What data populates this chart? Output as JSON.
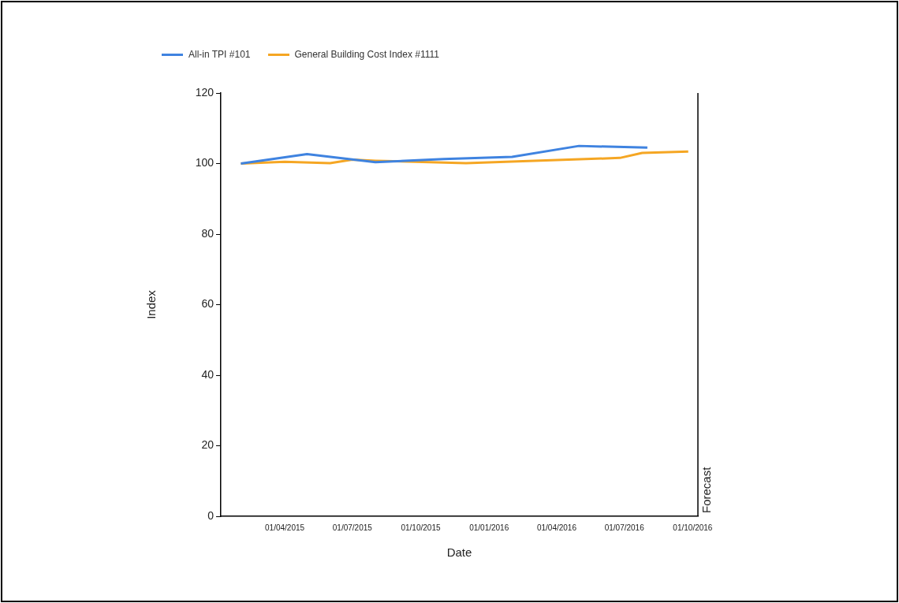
{
  "chart_data": {
    "type": "line",
    "xlabel": "Date",
    "ylabel": "Index",
    "xlim": [
      "2015-01-05",
      "2016-10-08"
    ],
    "xticks": [
      {
        "value": "2015-04-01",
        "label": "01/04/2015"
      },
      {
        "value": "2015-07-01",
        "label": "01/07/2015"
      },
      {
        "value": "2015-10-01",
        "label": "01/10/2015"
      },
      {
        "value": "2016-01-01",
        "label": "01/01/2016"
      },
      {
        "value": "2016-04-01",
        "label": "01/04/2016"
      },
      {
        "value": "2016-07-01",
        "label": "01/07/2016"
      },
      {
        "value": "2016-10-01",
        "label": "01/10/2016"
      }
    ],
    "ylim": [
      0,
      120
    ],
    "yticks": [
      0,
      20,
      40,
      60,
      80,
      100,
      120
    ],
    "grid": false,
    "legend": "top left",
    "marker": "none",
    "line_style": "solid",
    "series": [
      {
        "name": "All-in TPI #101",
        "color": "#3f83e0",
        "x": [
          "2015-02-01",
          "2015-05-01",
          "2015-08-01",
          "2015-11-01",
          "2016-02-01",
          "2016-05-01",
          "2016-08-01"
        ],
        "values": [
          100,
          102.7,
          100.4,
          101.3,
          101.9,
          105,
          104.5
        ]
      },
      {
        "name": "General Building Cost Index #1111",
        "color": "#f5a623",
        "x": [
          "2015-02-01",
          "2015-04-01",
          "2015-06-01",
          "2015-07-01",
          "2015-08-01",
          "2015-12-01",
          "2016-06-25",
          "2016-07-25",
          "2016-09-25"
        ],
        "values": [
          100,
          100.5,
          100.1,
          101.1,
          100.8,
          100.1,
          101.6,
          103,
          103.4
        ]
      }
    ],
    "ref_lines": [
      {
        "axis": "x",
        "value": "2016-10-08",
        "label": "Forecast",
        "color": "#000000"
      }
    ]
  }
}
